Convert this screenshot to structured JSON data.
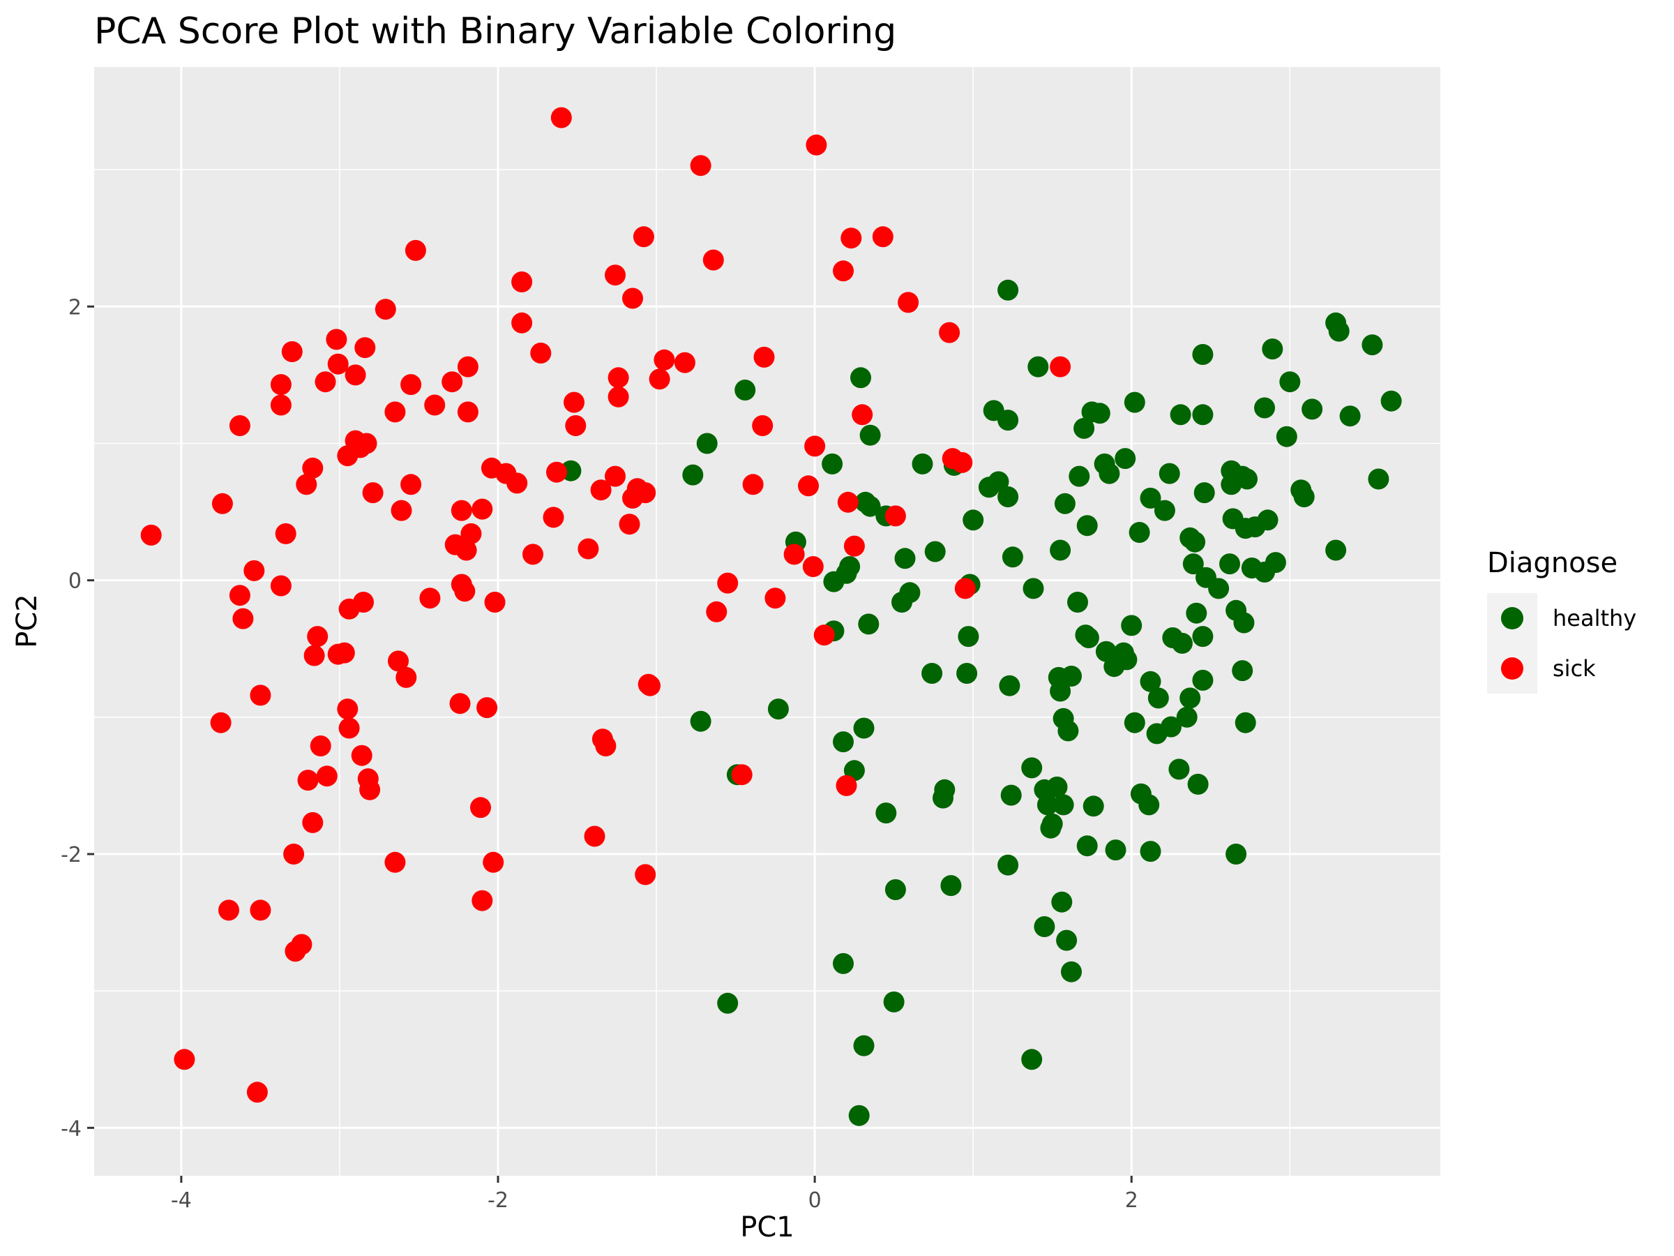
{
  "chart_data": {
    "type": "scatter",
    "title": "PCA Score Plot with Binary Variable Coloring",
    "xlabel": "PC1",
    "ylabel": "PC2",
    "xlim": [
      -4.55,
      3.95
    ],
    "ylim": [
      -4.35,
      3.75
    ],
    "x_ticks": [
      -4,
      -2,
      0,
      2
    ],
    "y_ticks": [
      -4,
      -2,
      0,
      2
    ],
    "x_tick_labels": [
      "-4",
      "-2",
      "0",
      "2"
    ],
    "y_tick_labels": [
      "-4",
      "-2",
      "0",
      "2"
    ],
    "grid": true,
    "legend": {
      "title": "Diagnose",
      "placement": "right"
    },
    "colors": {
      "panel_background": "#ebebeb",
      "grid_line": "#ffffff",
      "tick_text": "#4d4d4d"
    },
    "series": [
      {
        "name": "healthy",
        "color": "#006400",
        "points": [
          [
            -1.54,
            0.8
          ],
          [
            -0.44,
            1.39
          ],
          [
            -0.68,
            1.0
          ],
          [
            -0.77,
            0.77
          ],
          [
            -0.72,
            -1.03
          ],
          [
            -0.23,
            -0.94
          ],
          [
            -0.49,
            -1.42
          ],
          [
            -0.55,
            -3.09
          ],
          [
            0.29,
            1.48
          ],
          [
            0.35,
            1.06
          ],
          [
            0.11,
            0.85
          ],
          [
            -0.12,
            0.28
          ],
          [
            0.22,
            0.1
          ],
          [
            0.12,
            -0.01
          ],
          [
            0.2,
            0.05
          ],
          [
            0.32,
            0.57
          ],
          [
            0.35,
            0.54
          ],
          [
            0.45,
            0.47
          ],
          [
            0.12,
            -0.37
          ],
          [
            0.34,
            -0.32
          ],
          [
            0.18,
            -1.18
          ],
          [
            0.31,
            -1.08
          ],
          [
            0.25,
            -1.39
          ],
          [
            0.18,
            -2.8
          ],
          [
            0.31,
            -3.4
          ],
          [
            0.28,
            -3.91
          ],
          [
            0.51,
            -2.26
          ],
          [
            0.5,
            -3.08
          ],
          [
            0.45,
            -1.7
          ],
          [
            0.57,
            0.16
          ],
          [
            0.68,
            0.85
          ],
          [
            0.55,
            -0.16
          ],
          [
            0.6,
            -0.09
          ],
          [
            0.76,
            0.21
          ],
          [
            0.74,
            -0.68
          ],
          [
            0.82,
            -1.53
          ],
          [
            0.81,
            -1.59
          ],
          [
            0.86,
            -2.23
          ],
          [
            0.88,
            0.84
          ],
          [
            0.98,
            -0.03
          ],
          [
            1.0,
            0.44
          ],
          [
            0.97,
            -0.41
          ],
          [
            0.96,
            -0.68
          ],
          [
            1.1,
            0.68
          ],
          [
            1.13,
            1.24
          ],
          [
            1.16,
            0.72
          ],
          [
            1.22,
            2.12
          ],
          [
            1.22,
            1.17
          ],
          [
            1.22,
            0.61
          ],
          [
            1.25,
            0.17
          ],
          [
            1.23,
            -0.77
          ],
          [
            1.24,
            -1.57
          ],
          [
            1.22,
            -2.08
          ],
          [
            1.41,
            1.56
          ],
          [
            1.38,
            -0.06
          ],
          [
            1.37,
            -1.37
          ],
          [
            1.45,
            -1.53
          ],
          [
            1.47,
            -1.64
          ],
          [
            1.5,
            -1.78
          ],
          [
            1.49,
            -1.81
          ],
          [
            1.45,
            -2.53
          ],
          [
            1.37,
            -3.5
          ],
          [
            1.55,
            0.22
          ],
          [
            1.58,
            0.56
          ],
          [
            1.54,
            -0.71
          ],
          [
            1.55,
            -0.81
          ],
          [
            1.57,
            -1.01
          ],
          [
            1.6,
            -1.1
          ],
          [
            1.53,
            -1.51
          ],
          [
            1.57,
            -1.64
          ],
          [
            1.56,
            -2.35
          ],
          [
            1.59,
            -2.63
          ],
          [
            1.62,
            -2.86
          ],
          [
            1.62,
            -0.7
          ],
          [
            1.67,
            0.76
          ],
          [
            1.7,
            1.11
          ],
          [
            1.72,
            0.4
          ],
          [
            1.66,
            -0.16
          ],
          [
            1.71,
            -0.4
          ],
          [
            1.73,
            -0.42
          ],
          [
            1.76,
            -1.65
          ],
          [
            1.72,
            -1.94
          ],
          [
            1.75,
            1.23
          ],
          [
            1.8,
            1.22
          ],
          [
            1.83,
            0.85
          ],
          [
            1.86,
            0.78
          ],
          [
            1.84,
            -0.52
          ],
          [
            1.89,
            -0.63
          ],
          [
            1.95,
            -0.53
          ],
          [
            1.97,
            -0.58
          ],
          [
            1.9,
            -1.97
          ],
          [
            1.96,
            0.89
          ],
          [
            2.02,
            1.3
          ],
          [
            2.0,
            -0.33
          ],
          [
            2.05,
            0.35
          ],
          [
            2.02,
            -1.04
          ],
          [
            2.06,
            -1.56
          ],
          [
            2.11,
            -1.64
          ],
          [
            2.12,
            -1.98
          ],
          [
            2.12,
            0.6
          ],
          [
            2.21,
            0.51
          ],
          [
            2.24,
            0.78
          ],
          [
            2.12,
            -0.74
          ],
          [
            2.17,
            -0.86
          ],
          [
            2.16,
            -1.12
          ],
          [
            2.25,
            -1.07
          ],
          [
            2.26,
            -0.42
          ],
          [
            2.32,
            -0.46
          ],
          [
            2.31,
            1.21
          ],
          [
            2.3,
            -1.38
          ],
          [
            2.37,
            -0.86
          ],
          [
            2.35,
            -1.0
          ],
          [
            2.42,
            -1.49
          ],
          [
            2.37,
            0.31
          ],
          [
            2.4,
            0.28
          ],
          [
            2.39,
            0.12
          ],
          [
            2.41,
            -0.24
          ],
          [
            2.45,
            -0.41
          ],
          [
            2.45,
            -0.73
          ],
          [
            2.45,
            1.65
          ],
          [
            2.45,
            1.21
          ],
          [
            2.46,
            0.64
          ],
          [
            2.47,
            0.02
          ],
          [
            2.55,
            -0.06
          ],
          [
            2.63,
            0.8
          ],
          [
            2.63,
            0.7
          ],
          [
            2.64,
            0.45
          ],
          [
            2.62,
            0.12
          ],
          [
            2.66,
            -0.22
          ],
          [
            2.71,
            -0.31
          ],
          [
            2.66,
            -2.0
          ],
          [
            2.7,
            0.76
          ],
          [
            2.73,
            0.74
          ],
          [
            2.72,
            0.38
          ],
          [
            2.78,
            0.39
          ],
          [
            2.76,
            0.09
          ],
          [
            2.7,
            -0.66
          ],
          [
            2.72,
            -1.04
          ],
          [
            2.84,
            1.26
          ],
          [
            2.86,
            0.44
          ],
          [
            2.84,
            0.06
          ],
          [
            2.89,
            1.69
          ],
          [
            2.91,
            0.13
          ],
          [
            3.0,
            1.45
          ],
          [
            2.98,
            1.05
          ],
          [
            3.07,
            0.66
          ],
          [
            3.09,
            0.61
          ],
          [
            3.14,
            1.25
          ],
          [
            3.29,
            1.88
          ],
          [
            3.31,
            1.82
          ],
          [
            3.29,
            0.22
          ],
          [
            3.38,
            1.2
          ],
          [
            3.52,
            1.72
          ],
          [
            3.56,
            0.74
          ],
          [
            3.64,
            1.31
          ]
        ]
      },
      {
        "name": "sick",
        "color": "#ff0000",
        "points": [
          [
            -4.19,
            0.33
          ],
          [
            -3.98,
            -3.5
          ],
          [
            -3.74,
            0.56
          ],
          [
            -3.75,
            -1.04
          ],
          [
            -3.7,
            -2.41
          ],
          [
            -3.63,
            1.13
          ],
          [
            -3.63,
            -0.11
          ],
          [
            -3.61,
            -0.28
          ],
          [
            -3.54,
            0.07
          ],
          [
            -3.52,
            -3.74
          ],
          [
            -3.5,
            -0.84
          ],
          [
            -3.5,
            -2.41
          ],
          [
            -3.37,
            1.43
          ],
          [
            -3.37,
            1.28
          ],
          [
            -3.34,
            0.34
          ],
          [
            -3.37,
            -0.04
          ],
          [
            -3.3,
            1.67
          ],
          [
            -3.29,
            -2.0
          ],
          [
            -3.28,
            -2.71
          ],
          [
            -3.24,
            -2.66
          ],
          [
            -3.21,
            0.7
          ],
          [
            -3.2,
            -1.46
          ],
          [
            -3.17,
            0.82
          ],
          [
            -3.17,
            -1.77
          ],
          [
            -3.16,
            -0.55
          ],
          [
            -3.14,
            -0.41
          ],
          [
            -3.12,
            -1.21
          ],
          [
            -3.09,
            1.45
          ],
          [
            -3.08,
            -1.43
          ],
          [
            -3.02,
            1.76
          ],
          [
            -3.01,
            1.58
          ],
          [
            -3.01,
            -0.54
          ],
          [
            -2.97,
            -0.53
          ],
          [
            -2.95,
            0.91
          ],
          [
            -2.94,
            -0.21
          ],
          [
            -2.95,
            -0.94
          ],
          [
            -2.94,
            -1.08
          ],
          [
            -2.9,
            1.5
          ],
          [
            -2.9,
            1.02
          ],
          [
            -2.87,
            0.97
          ],
          [
            -2.86,
            -1.28
          ],
          [
            -2.85,
            -0.16
          ],
          [
            -2.84,
            1.7
          ],
          [
            -2.83,
            1.0
          ],
          [
            -2.82,
            -1.45
          ],
          [
            -2.81,
            -1.53
          ],
          [
            -2.79,
            0.64
          ],
          [
            -2.71,
            1.98
          ],
          [
            -2.65,
            1.23
          ],
          [
            -2.63,
            -0.59
          ],
          [
            -2.65,
            -2.06
          ],
          [
            -2.61,
            0.51
          ],
          [
            -2.58,
            -0.71
          ],
          [
            -2.55,
            1.43
          ],
          [
            -2.55,
            0.7
          ],
          [
            -2.52,
            2.41
          ],
          [
            -2.4,
            1.28
          ],
          [
            -2.43,
            -0.13
          ],
          [
            -2.29,
            1.45
          ],
          [
            -2.27,
            0.26
          ],
          [
            -2.23,
            0.51
          ],
          [
            -2.23,
            -0.03
          ],
          [
            -2.21,
            -0.08
          ],
          [
            -2.24,
            -0.9
          ],
          [
            -2.2,
            0.22
          ],
          [
            -2.19,
            1.56
          ],
          [
            -2.19,
            1.23
          ],
          [
            -2.17,
            0.34
          ],
          [
            -2.1,
            0.52
          ],
          [
            -2.11,
            -1.66
          ],
          [
            -2.1,
            -2.34
          ],
          [
            -2.07,
            -0.93
          ],
          [
            -2.04,
            0.82
          ],
          [
            -2.02,
            -0.16
          ],
          [
            -2.03,
            -2.06
          ],
          [
            -1.95,
            0.78
          ],
          [
            -1.88,
            0.71
          ],
          [
            -1.85,
            2.18
          ],
          [
            -1.85,
            1.88
          ],
          [
            -1.78,
            0.19
          ],
          [
            -1.73,
            1.66
          ],
          [
            -1.65,
            0.46
          ],
          [
            -1.63,
            0.79
          ],
          [
            -1.6,
            3.38
          ],
          [
            -1.52,
            1.3
          ],
          [
            -1.51,
            1.13
          ],
          [
            -1.43,
            0.23
          ],
          [
            -1.39,
            -1.87
          ],
          [
            -1.35,
            0.66
          ],
          [
            -1.34,
            -1.16
          ],
          [
            -1.32,
            -1.21
          ],
          [
            -1.26,
            2.23
          ],
          [
            -1.26,
            0.76
          ],
          [
            -1.24,
            1.48
          ],
          [
            -1.24,
            1.34
          ],
          [
            -1.17,
            0.41
          ],
          [
            -1.15,
            0.6
          ],
          [
            -1.15,
            2.06
          ],
          [
            -1.12,
            0.67
          ],
          [
            -1.08,
            2.51
          ],
          [
            -1.07,
            0.64
          ],
          [
            -1.07,
            -2.15
          ],
          [
            -1.05,
            -0.76
          ],
          [
            -1.04,
            -0.77
          ],
          [
            -0.98,
            1.47
          ],
          [
            -0.95,
            1.61
          ],
          [
            -0.82,
            1.59
          ],
          [
            -0.72,
            3.03
          ],
          [
            -0.64,
            2.34
          ],
          [
            -0.55,
            -0.02
          ],
          [
            -0.62,
            -0.23
          ],
          [
            -0.46,
            -1.42
          ],
          [
            -0.39,
            0.7
          ],
          [
            -0.33,
            1.13
          ],
          [
            -0.32,
            1.63
          ],
          [
            -0.25,
            -0.13
          ],
          [
            -0.13,
            0.19
          ],
          [
            -0.04,
            0.69
          ],
          [
            -0.01,
            0.1
          ],
          [
            0.0,
            0.98
          ],
          [
            0.01,
            3.18
          ],
          [
            0.06,
            -0.4
          ],
          [
            0.18,
            2.26
          ],
          [
            0.2,
            -1.5
          ],
          [
            0.21,
            0.57
          ],
          [
            0.23,
            2.5
          ],
          [
            0.25,
            0.25
          ],
          [
            0.3,
            1.21
          ],
          [
            0.43,
            2.51
          ],
          [
            0.51,
            0.47
          ],
          [
            0.59,
            2.03
          ],
          [
            0.85,
            1.81
          ],
          [
            0.87,
            0.89
          ],
          [
            0.93,
            0.86
          ],
          [
            0.95,
            -0.06
          ],
          [
            1.55,
            1.56
          ]
        ]
      }
    ]
  }
}
